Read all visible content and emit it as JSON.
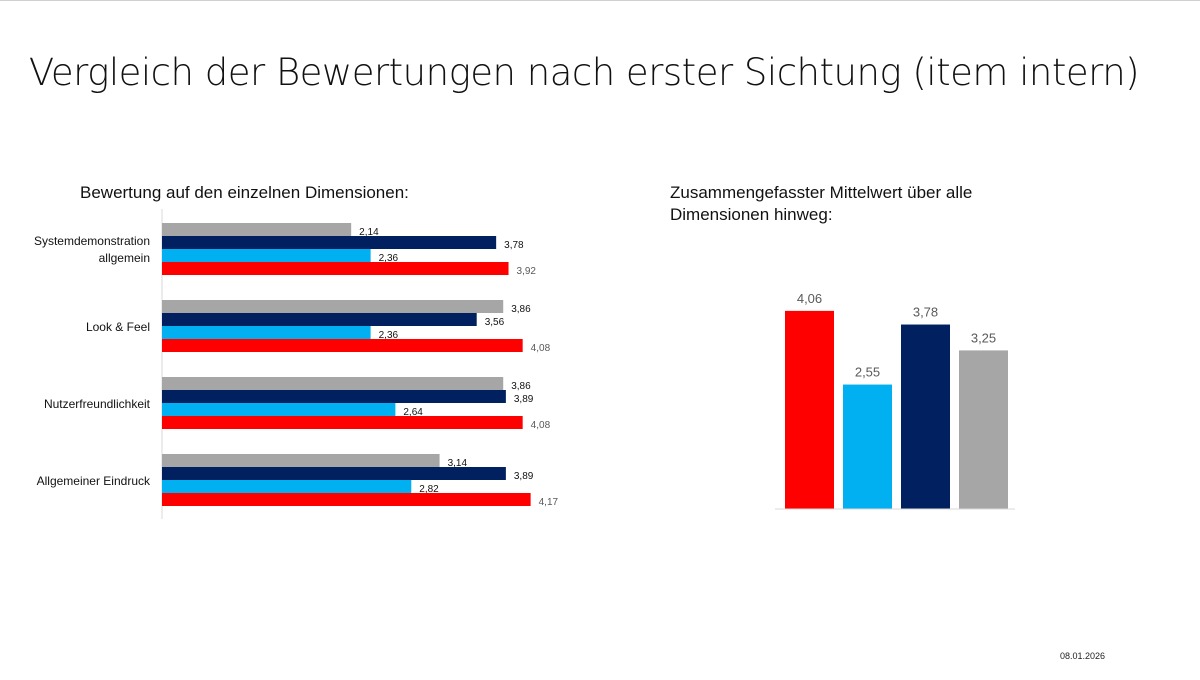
{
  "title": "Vergleich der Bewertungen nach erster Sichtung (item intern)",
  "date": "08.01.2026",
  "chart_data": [
    {
      "type": "bar",
      "orientation": "horizontal",
      "title": "Bewertung auf den einzelnen Dimensionen:",
      "categories": [
        "Systemdemonstration allgemein",
        "Look & Feel",
        "Nutzerfreundlichkeit",
        "Allgemeiner Eindruck"
      ],
      "series": [
        {
          "color": "#a6a6a6",
          "values": [
            2.14,
            3.86,
            3.86,
            3.14
          ],
          "labels": [
            "2,14",
            "3,86",
            "3,86",
            "3,14"
          ]
        },
        {
          "color": "#002060",
          "values": [
            3.78,
            3.56,
            3.89,
            3.89
          ],
          "labels": [
            "3,78",
            "3,56",
            "3,89",
            "3,89"
          ]
        },
        {
          "color": "#00b0f0",
          "values": [
            2.36,
            2.36,
            2.64,
            2.82
          ],
          "labels": [
            "2,36",
            "2,36",
            "2,64",
            "2,82"
          ]
        },
        {
          "color": "#ff0000",
          "values": [
            3.92,
            4.08,
            4.08,
            4.17
          ],
          "labels": [
            "3,92",
            "4,08",
            "4,08",
            "4,17"
          ]
        }
      ],
      "xlim": [
        0,
        4.5
      ],
      "grid": false
    },
    {
      "type": "bar",
      "title": "Zusammengefasster Mittelwert über alle Dimensionen hinweg:",
      "values": [
        4.06,
        2.55,
        3.78,
        3.25
      ],
      "labels": [
        "4,06",
        "2,55",
        "3,78",
        "3,25"
      ],
      "colors": [
        "#ff0000",
        "#00b0f0",
        "#002060",
        "#a6a6a6"
      ],
      "ylim": [
        0,
        4.5
      ],
      "grid": false
    }
  ]
}
